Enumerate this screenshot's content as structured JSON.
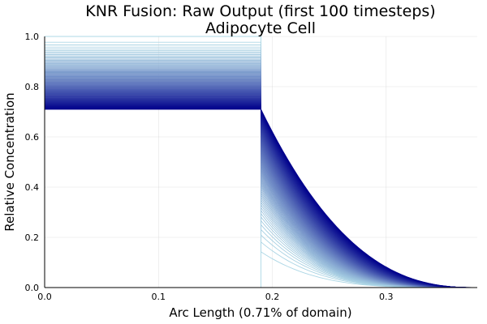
{
  "chart_data": {
    "type": "line",
    "title": "KNR Fusion: Raw Output (first 100 timesteps)",
    "subtitle": "Adipocyte Cell",
    "xlabel": "Arc Length (0.71% of domain)",
    "ylabel": "Relative Concentration",
    "xlim": [
      0.0,
      0.38
    ],
    "ylim": [
      0.0,
      1.0
    ],
    "x_ticks": [
      0.0,
      0.1,
      0.2,
      0.3
    ],
    "x_tick_labels": [
      "0.0",
      "0.1",
      "0.2",
      "0.3"
    ],
    "y_ticks": [
      0.0,
      0.2,
      0.4,
      0.6,
      0.8,
      1.0
    ],
    "y_tick_labels": [
      "0.0",
      "0.2",
      "0.4",
      "0.6",
      "0.8",
      "1.0"
    ],
    "grid": true,
    "legend": "none",
    "series_count": 100,
    "interface_x": 0.19,
    "plateau_level_range": [
      0.71,
      1.0
    ],
    "tail_end_x": 0.38,
    "tail_end_y": 0.0,
    "color_gradient": [
      "#add8e6",
      "#00008b"
    ]
  }
}
